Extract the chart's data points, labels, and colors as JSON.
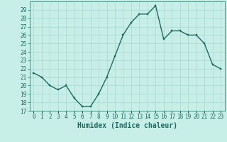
{
  "x": [
    0,
    1,
    2,
    3,
    4,
    5,
    6,
    7,
    8,
    9,
    10,
    11,
    12,
    13,
    14,
    15,
    16,
    17,
    18,
    19,
    20,
    21,
    22,
    23
  ],
  "y": [
    21.5,
    21.0,
    20.0,
    19.5,
    20.0,
    18.5,
    17.5,
    17.5,
    19.0,
    21.0,
    23.5,
    26.0,
    27.5,
    28.5,
    28.5,
    29.5,
    25.5,
    26.5,
    26.5,
    26.0,
    26.0,
    25.0,
    22.5,
    22.0
  ],
  "line_color": "#1a6b5e",
  "marker_color": "#1a6b5e",
  "bg_color": "#c8eee8",
  "grid_color": "#a8d8d0",
  "xlabel": "Humidex (Indice chaleur)",
  "ylim": [
    17,
    30
  ],
  "xlim": [
    -0.5,
    23.5
  ],
  "yticks": [
    17,
    18,
    19,
    20,
    21,
    22,
    23,
    24,
    25,
    26,
    27,
    28,
    29
  ],
  "xticks": [
    0,
    1,
    2,
    3,
    4,
    5,
    6,
    7,
    8,
    9,
    10,
    11,
    12,
    13,
    14,
    15,
    16,
    17,
    18,
    19,
    20,
    21,
    22,
    23
  ],
  "xtick_labels": [
    "0",
    "1",
    "2",
    "3",
    "4",
    "5",
    "6",
    "7",
    "8",
    "9",
    "10",
    "11",
    "12",
    "13",
    "14",
    "15",
    "16",
    "17",
    "18",
    "19",
    "20",
    "21",
    "22",
    "23"
  ],
  "tick_fontsize": 5.5,
  "xlabel_fontsize": 7,
  "linewidth": 1.0,
  "markersize": 2.0
}
